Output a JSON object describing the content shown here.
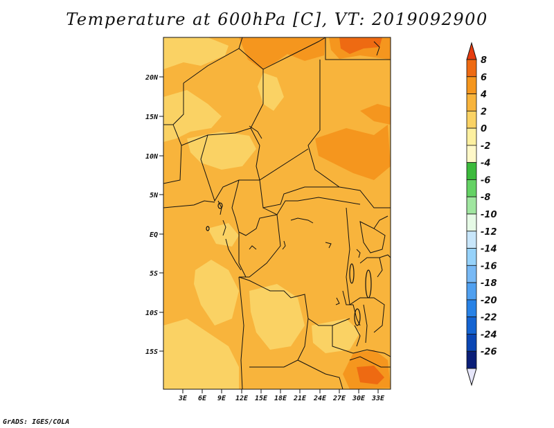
{
  "title": "Temperature at 600hPa [C], VT: 2019092900",
  "credit": "GrADS: IGES/COLA",
  "map": {
    "lat_labels": [
      "20N",
      "15N",
      "10N",
      "5N",
      "EQ",
      "5S",
      "10S",
      "15S"
    ],
    "lon_labels": [
      "3E",
      "6E",
      "9E",
      "12E",
      "15E",
      "18E",
      "21E",
      "24E",
      "27E",
      "30E",
      "33E"
    ]
  },
  "colorbar": {
    "labels": [
      "8",
      "6",
      "4",
      "2",
      "0",
      "-2",
      "-4",
      "-6",
      "-8",
      "-10",
      "-12",
      "-14",
      "-16",
      "-18",
      "-20",
      "-22",
      "-24",
      "-26"
    ],
    "colors": [
      "#e63c0f",
      "#ee6a12",
      "#f5961e",
      "#f8b43c",
      "#fad264",
      "#fdf0a0",
      "#fff8c8",
      "#3cba3c",
      "#64d264",
      "#a0e6a0",
      "#e6fae6",
      "#c8e6fa",
      "#96d2fa",
      "#78b9f5",
      "#50a0f0",
      "#2882e6",
      "#1464d2",
      "#0a46b4",
      "#0a1e78",
      "#e6e6fa"
    ]
  }
}
